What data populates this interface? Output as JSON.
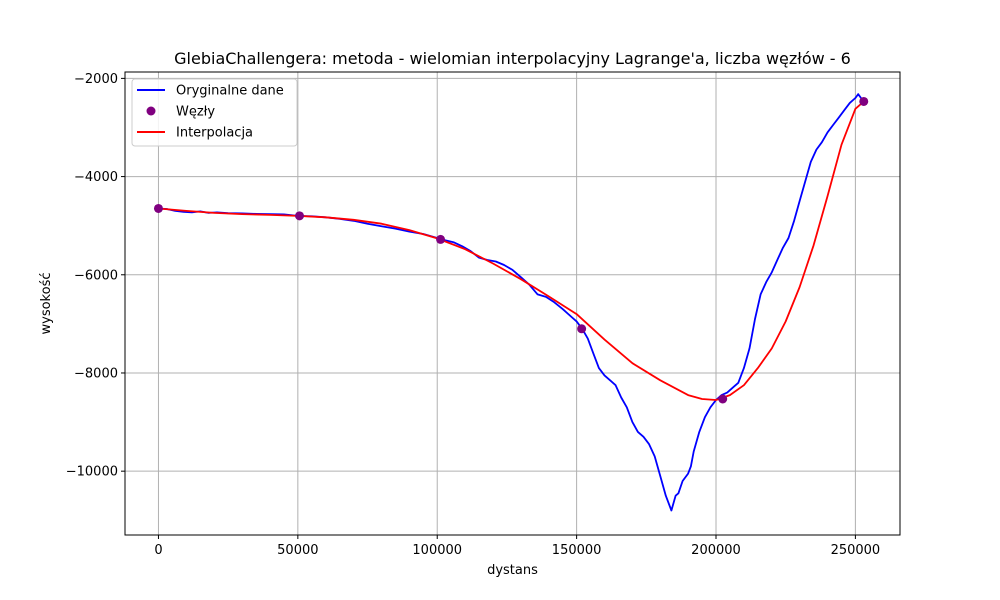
{
  "chart_data": {
    "type": "line",
    "title": "GlebiaChallengera: metoda - wielomian interpolacyjny Lagrange'a, liczba węzłów - 6",
    "xlabel": "dystans",
    "ylabel": "wysokość",
    "xlim": [
      -12000,
      266000
    ],
    "ylim": [
      -11300,
      -1870
    ],
    "x_ticks": [
      0,
      50000,
      100000,
      150000,
      200000,
      250000
    ],
    "x_tick_labels": [
      "0",
      "50000",
      "100000",
      "150000",
      "200000",
      "250000"
    ],
    "y_ticks": [
      -10000,
      -8000,
      -6000,
      -4000,
      -2000
    ],
    "y_tick_labels": [
      "−10000",
      "−8000",
      "−6000",
      "−4000",
      "−2000"
    ],
    "grid": true,
    "legend_position": "top-left",
    "series": [
      {
        "name": "Oryginalne dane",
        "kind": "line",
        "color": "#0000ff",
        "x": [
          0,
          3000,
          6000,
          9000,
          12000,
          15000,
          18000,
          21000,
          25000,
          30000,
          35000,
          40000,
          45000,
          50000,
          55000,
          60000,
          65000,
          70000,
          75000,
          80000,
          85000,
          90000,
          95000,
          100000,
          103000,
          106000,
          109000,
          112000,
          115000,
          118000,
          121000,
          124000,
          127000,
          130000,
          133000,
          136000,
          139000,
          142000,
          145000,
          148000,
          150000,
          152000,
          154000,
          156000,
          158000,
          160000,
          162000,
          164000,
          166000,
          168000,
          170000,
          172000,
          174000,
          176000,
          178000,
          180000,
          182000,
          184000,
          185500,
          186500,
          188000,
          190000,
          191000,
          192000,
          194000,
          196000,
          198000,
          200000,
          202000,
          204000,
          206000,
          208000,
          210000,
          212000,
          214000,
          216000,
          218000,
          220000,
          222000,
          224000,
          226000,
          228000,
          230000,
          232000,
          234000,
          236000,
          238000,
          240000,
          242000,
          244000,
          246000,
          248000,
          250000,
          251000,
          252000,
          253000
        ],
        "y": [
          -4650,
          -4660,
          -4700,
          -4720,
          -4730,
          -4710,
          -4740,
          -4730,
          -4745,
          -4750,
          -4760,
          -4765,
          -4770,
          -4800,
          -4810,
          -4830,
          -4860,
          -4900,
          -4960,
          -5010,
          -5060,
          -5120,
          -5170,
          -5250,
          -5300,
          -5340,
          -5420,
          -5520,
          -5650,
          -5700,
          -5730,
          -5800,
          -5900,
          -6050,
          -6200,
          -6400,
          -6450,
          -6560,
          -6700,
          -6850,
          -6950,
          -7100,
          -7300,
          -7600,
          -7900,
          -8050,
          -8150,
          -8250,
          -8500,
          -8700,
          -9000,
          -9200,
          -9300,
          -9450,
          -9700,
          -10100,
          -10500,
          -10800,
          -10500,
          -10450,
          -10200,
          -10050,
          -9900,
          -9600,
          -9200,
          -8900,
          -8700,
          -8550,
          -8450,
          -8400,
          -8300,
          -8200,
          -7900,
          -7500,
          -6900,
          -6400,
          -6150,
          -5950,
          -5700,
          -5450,
          -5250,
          -4900,
          -4500,
          -4100,
          -3700,
          -3450,
          -3300,
          -3100,
          -2950,
          -2800,
          -2650,
          -2500,
          -2400,
          -2320,
          -2400,
          -2470
        ]
      },
      {
        "name": "Węzły",
        "kind": "scatter",
        "color": "#800080",
        "x": [
          0,
          50600,
          101200,
          151800,
          202400,
          253000
        ],
        "y": [
          -4650,
          -4800,
          -5280,
          -7100,
          -8530,
          -2470
        ]
      },
      {
        "name": "Interpolacja",
        "kind": "line",
        "color": "#ff0000",
        "x": [
          0,
          10000,
          20000,
          30000,
          40000,
          50000,
          60000,
          70000,
          80000,
          90000,
          100000,
          110000,
          120000,
          130000,
          140000,
          150000,
          160000,
          170000,
          180000,
          190000,
          195000,
          200000,
          205000,
          210000,
          215000,
          220000,
          225000,
          230000,
          235000,
          240000,
          245000,
          250000,
          253000
        ],
        "y": [
          -4650,
          -4700,
          -4740,
          -4765,
          -4780,
          -4800,
          -4830,
          -4880,
          -4960,
          -5090,
          -5260,
          -5480,
          -5770,
          -6090,
          -6440,
          -6800,
          -7320,
          -7800,
          -8150,
          -8450,
          -8530,
          -8550,
          -8450,
          -8250,
          -7900,
          -7500,
          -6950,
          -6250,
          -5400,
          -4400,
          -3350,
          -2620,
          -2470
        ]
      }
    ]
  }
}
